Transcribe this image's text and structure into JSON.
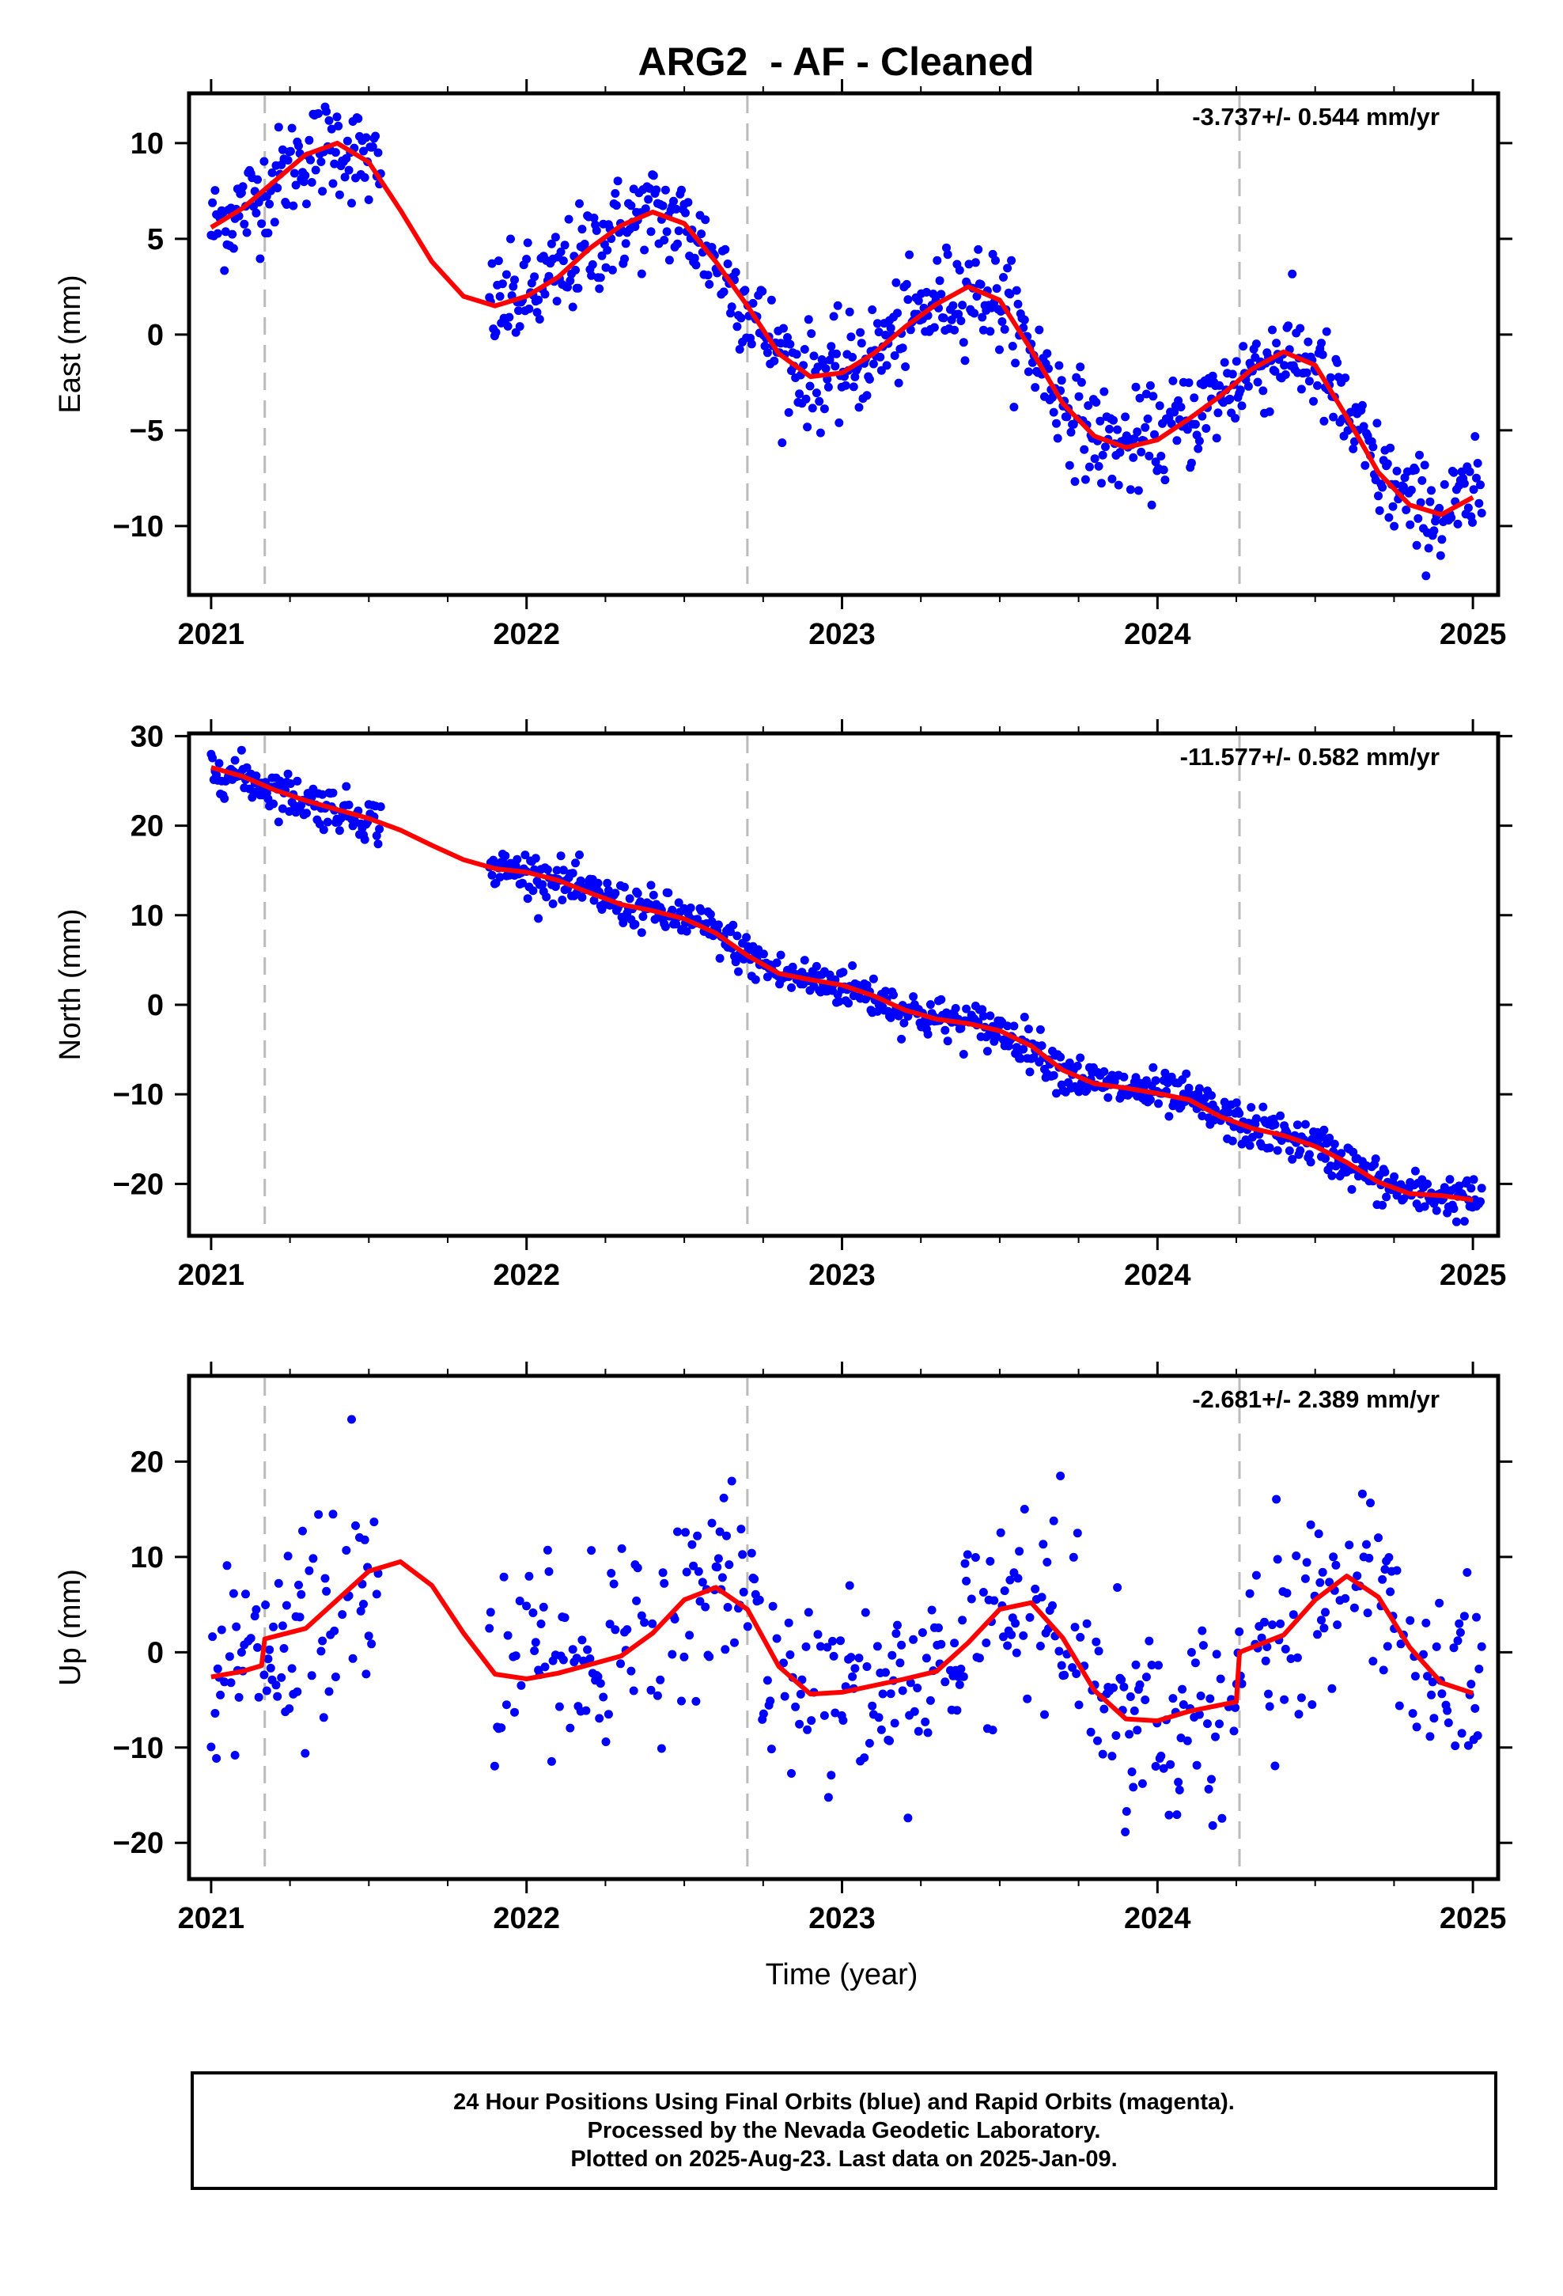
{
  "title": "ARG2  - AF - Cleaned",
  "xlabel": "Time (year)",
  "footer": {
    "line1": "24 Hour Positions Using Final Orbits (blue) and Rapid Orbits (magenta).",
    "line2": "Processed by the Nevada Geodetic Laboratory.",
    "line3": "Plotted on 2025-Aug-23. Last data on 2025-Jan-09."
  },
  "colors": {
    "points": "#0000ff",
    "fit": "#ff0000",
    "breaks": "#bbbbbb",
    "axis": "#000000"
  },
  "chart_data": [
    {
      "type": "scatter",
      "ylabel": "East (mm)",
      "rate_label": "-3.737+/- 0.544 mm/yr",
      "xlim": [
        2020.93,
        2025.08
      ],
      "ylim": [
        -13.6,
        12.6
      ],
      "xticks": [
        "2021",
        "2022",
        "2023",
        "2024",
        "2025"
      ],
      "yticks": [
        10,
        5,
        0,
        -5,
        -10
      ],
      "breaks": [
        2021.17,
        2022.7,
        2024.26
      ],
      "gaps": [
        [
          2021.54,
          2021.88
        ]
      ],
      "fit": [
        [
          2021.0,
          5.6
        ],
        [
          2021.1,
          6.6
        ],
        [
          2021.2,
          8.0
        ],
        [
          2021.3,
          9.4
        ],
        [
          2021.4,
          10.0
        ],
        [
          2021.5,
          9.0
        ],
        [
          2021.6,
          6.5
        ],
        [
          2021.7,
          3.8
        ],
        [
          2021.8,
          2.0
        ],
        [
          2021.9,
          1.5
        ],
        [
          2022.0,
          2.0
        ],
        [
          2022.1,
          3.0
        ],
        [
          2022.2,
          4.5
        ],
        [
          2022.3,
          5.7
        ],
        [
          2022.4,
          6.4
        ],
        [
          2022.5,
          5.8
        ],
        [
          2022.6,
          3.8
        ],
        [
          2022.7,
          1.5
        ],
        [
          2022.8,
          -1.0
        ],
        [
          2022.9,
          -2.2
        ],
        [
          2023.0,
          -2.0
        ],
        [
          2023.1,
          -1.0
        ],
        [
          2023.2,
          0.4
        ],
        [
          2023.3,
          1.6
        ],
        [
          2023.4,
          2.5
        ],
        [
          2023.5,
          1.8
        ],
        [
          2023.6,
          -0.8
        ],
        [
          2023.7,
          -3.6
        ],
        [
          2023.8,
          -5.3
        ],
        [
          2023.9,
          -5.9
        ],
        [
          2024.0,
          -5.5
        ],
        [
          2024.1,
          -4.4
        ],
        [
          2024.2,
          -3.2
        ],
        [
          2024.3,
          -1.8
        ],
        [
          2024.4,
          -0.9
        ],
        [
          2024.5,
          -1.6
        ],
        [
          2024.6,
          -4.3
        ],
        [
          2024.7,
          -7.2
        ],
        [
          2024.8,
          -8.9
        ],
        [
          2024.9,
          -9.4
        ],
        [
          2025.0,
          -8.5
        ]
      ]
    },
    {
      "type": "scatter",
      "ylabel": "North (mm)",
      "rate_label": "-11.577+/- 0.582 mm/yr",
      "xlim": [
        2020.93,
        2025.08
      ],
      "ylim": [
        -25.8,
        30.3
      ],
      "xticks": [
        "2021",
        "2022",
        "2023",
        "2024",
        "2025"
      ],
      "yticks": [
        30,
        20,
        10,
        0,
        -10,
        -20
      ],
      "breaks": [
        2021.17,
        2022.7,
        2024.26
      ],
      "gaps": [
        [
          2021.54,
          2021.88
        ]
      ],
      "fit": [
        [
          2021.0,
          26.5
        ],
        [
          2021.1,
          25.5
        ],
        [
          2021.2,
          24.0
        ],
        [
          2021.3,
          22.8
        ],
        [
          2021.4,
          21.8
        ],
        [
          2021.5,
          20.8
        ],
        [
          2021.6,
          19.5
        ],
        [
          2021.7,
          17.8
        ],
        [
          2021.8,
          16.2
        ],
        [
          2021.9,
          15.2
        ],
        [
          2022.0,
          14.8
        ],
        [
          2022.1,
          13.9
        ],
        [
          2022.2,
          12.5
        ],
        [
          2022.3,
          11.2
        ],
        [
          2022.4,
          10.5
        ],
        [
          2022.5,
          9.6
        ],
        [
          2022.6,
          8.0
        ],
        [
          2022.7,
          5.5
        ],
        [
          2022.8,
          3.5
        ],
        [
          2022.9,
          2.8
        ],
        [
          2023.0,
          2.2
        ],
        [
          2023.1,
          1.0
        ],
        [
          2023.2,
          -0.6
        ],
        [
          2023.3,
          -1.6
        ],
        [
          2023.4,
          -2.1
        ],
        [
          2023.5,
          -2.9
        ],
        [
          2023.6,
          -4.6
        ],
        [
          2023.7,
          -7.3
        ],
        [
          2023.8,
          -8.8
        ],
        [
          2023.9,
          -9.3
        ],
        [
          2024.0,
          -9.9
        ],
        [
          2024.1,
          -10.6
        ],
        [
          2024.2,
          -12.5
        ],
        [
          2024.3,
          -13.8
        ],
        [
          2024.4,
          -14.6
        ],
        [
          2024.5,
          -15.8
        ],
        [
          2024.6,
          -17.6
        ],
        [
          2024.7,
          -19.8
        ],
        [
          2024.8,
          -21.1
        ],
        [
          2024.9,
          -21.3
        ],
        [
          2025.0,
          -21.8
        ]
      ]
    },
    {
      "type": "scatter",
      "ylabel": "Up (mm)",
      "rate_label": "-2.681+/- 2.389 mm/yr",
      "xlim": [
        2020.93,
        2025.08
      ],
      "ylim": [
        -23.8,
        29.0
      ],
      "xticks": [
        "2021",
        "2022",
        "2023",
        "2024",
        "2025"
      ],
      "yticks": [
        20,
        10,
        0,
        -10,
        -20
      ],
      "breaks": [
        2021.17,
        2022.7,
        2024.26
      ],
      "gaps": [
        [
          2021.54,
          2021.88
        ]
      ],
      "fit": [
        [
          2021.0,
          -2.6
        ],
        [
          2021.1,
          -2.0
        ],
        [
          2021.16,
          -1.4
        ],
        [
          2021.17,
          1.4
        ],
        [
          2021.3,
          2.5
        ],
        [
          2021.4,
          5.5
        ],
        [
          2021.5,
          8.5
        ],
        [
          2021.6,
          9.5
        ],
        [
          2021.7,
          7.0
        ],
        [
          2021.8,
          2.0
        ],
        [
          2021.9,
          -2.3
        ],
        [
          2022.0,
          -2.8
        ],
        [
          2022.1,
          -2.2
        ],
        [
          2022.2,
          -1.3
        ],
        [
          2022.3,
          -0.4
        ],
        [
          2022.4,
          2.0
        ],
        [
          2022.5,
          5.5
        ],
        [
          2022.6,
          6.8
        ],
        [
          2022.7,
          4.5
        ],
        [
          2022.8,
          -1.5
        ],
        [
          2022.9,
          -4.4
        ],
        [
          2023.0,
          -4.2
        ],
        [
          2023.1,
          -3.5
        ],
        [
          2023.2,
          -2.8
        ],
        [
          2023.3,
          -2.0
        ],
        [
          2023.4,
          1.0
        ],
        [
          2023.5,
          4.5
        ],
        [
          2023.6,
          5.2
        ],
        [
          2023.7,
          1.5
        ],
        [
          2023.8,
          -4.0
        ],
        [
          2023.9,
          -7.0
        ],
        [
          2024.0,
          -7.2
        ],
        [
          2024.1,
          -6.2
        ],
        [
          2024.25,
          -5.2
        ],
        [
          2024.26,
          0.0
        ],
        [
          2024.4,
          1.8
        ],
        [
          2024.5,
          5.5
        ],
        [
          2024.6,
          8.0
        ],
        [
          2024.7,
          5.8
        ],
        [
          2024.8,
          0.5
        ],
        [
          2024.9,
          -3.2
        ],
        [
          2025.0,
          -4.3
        ]
      ]
    }
  ]
}
